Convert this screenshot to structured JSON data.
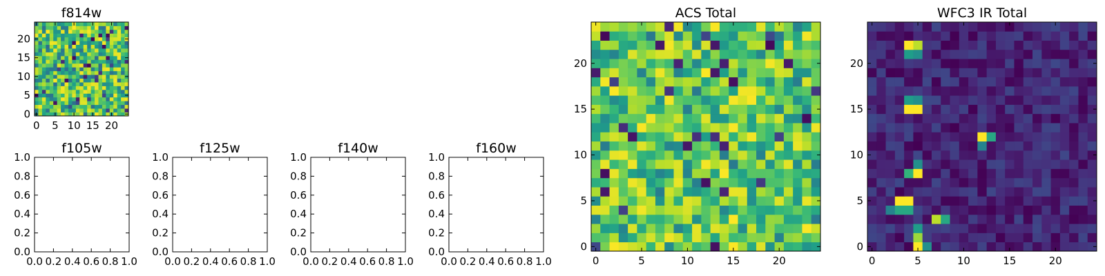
{
  "chart_data": [
    {
      "id": "f814w",
      "type": "heatmap",
      "title": "f814w",
      "grid_size": 25,
      "extent": [
        -0.5,
        24.5,
        -0.5,
        24.5
      ],
      "xticks": [
        0,
        5,
        10,
        15,
        20
      ],
      "yticks": [
        0,
        5,
        10,
        15,
        20
      ],
      "colormap": "viridis",
      "pattern": "noise",
      "seed": 814,
      "value_range": [
        0.35,
        1.0
      ]
    },
    {
      "id": "f105w",
      "type": "scatter",
      "title": "f105w",
      "empty": true,
      "xlim": [
        0,
        1
      ],
      "ylim": [
        0,
        1
      ],
      "xticks": [
        "0.0",
        "0.2",
        "0.4",
        "0.6",
        "0.8",
        "1.0"
      ],
      "yticks": [
        "0.0",
        "0.2",
        "0.4",
        "0.6",
        "0.8",
        "1.0"
      ]
    },
    {
      "id": "f125w",
      "type": "scatter",
      "title": "f125w",
      "empty": true,
      "xlim": [
        0,
        1
      ],
      "ylim": [
        0,
        1
      ],
      "xticks": [
        "0.0",
        "0.2",
        "0.4",
        "0.6",
        "0.8",
        "1.0"
      ],
      "yticks": [
        "0.0",
        "0.2",
        "0.4",
        "0.6",
        "0.8",
        "1.0"
      ]
    },
    {
      "id": "f140w",
      "type": "scatter",
      "title": "f140w",
      "empty": true,
      "xlim": [
        0,
        1
      ],
      "ylim": [
        0,
        1
      ],
      "xticks": [
        "0.0",
        "0.2",
        "0.4",
        "0.6",
        "0.8",
        "1.0"
      ],
      "yticks": [
        "0.0",
        "0.2",
        "0.4",
        "0.6",
        "0.8",
        "1.0"
      ]
    },
    {
      "id": "f160w",
      "type": "scatter",
      "title": "f160w",
      "empty": true,
      "xlim": [
        0,
        1
      ],
      "ylim": [
        0,
        1
      ],
      "xticks": [
        "0.0",
        "0.2",
        "0.4",
        "0.6",
        "0.8",
        "1.0"
      ],
      "yticks": [
        "0.0",
        "0.2",
        "0.4",
        "0.6",
        "0.8",
        "1.0"
      ]
    },
    {
      "id": "acs-total",
      "type": "heatmap",
      "title": "ACS Total",
      "grid_size": 25,
      "extent": [
        -0.5,
        24.5,
        -0.5,
        24.5
      ],
      "xticks": [
        0,
        5,
        10,
        15,
        20
      ],
      "yticks": [
        0,
        5,
        10,
        15,
        20
      ],
      "colormap": "viridis",
      "pattern": "noise",
      "seed": 2024,
      "value_range": [
        0.4,
        1.0
      ]
    },
    {
      "id": "wfc3-ir-total",
      "type": "heatmap",
      "title": "WFC3 IR Total",
      "grid_size": 25,
      "extent": [
        -0.5,
        24.5,
        -0.5,
        24.5
      ],
      "xticks": [
        0,
        5,
        10,
        15,
        20
      ],
      "yticks": [
        0,
        5,
        10,
        15,
        20
      ],
      "colormap": "viridis",
      "pattern": "sparse",
      "seed": 160,
      "value_range": [
        0.0,
        0.22
      ],
      "bright_cells": [
        {
          "x": 4,
          "y": 22,
          "v": 1.0
        },
        {
          "x": 5,
          "y": 22,
          "v": 0.9
        },
        {
          "x": 4,
          "y": 21,
          "v": 0.55
        },
        {
          "x": 5,
          "y": 21,
          "v": 0.5
        },
        {
          "x": 4,
          "y": 16,
          "v": 0.55
        },
        {
          "x": 5,
          "y": 16,
          "v": 0.5
        },
        {
          "x": 4,
          "y": 15,
          "v": 1.0
        },
        {
          "x": 5,
          "y": 15,
          "v": 1.0
        },
        {
          "x": 12,
          "y": 12,
          "v": 1.0
        },
        {
          "x": 13,
          "y": 12,
          "v": 0.6
        },
        {
          "x": 12,
          "y": 11,
          "v": 0.45
        },
        {
          "x": 5,
          "y": 9,
          "v": 0.5
        },
        {
          "x": 4,
          "y": 8,
          "v": 0.65
        },
        {
          "x": 5,
          "y": 8,
          "v": 1.0
        },
        {
          "x": 3,
          "y": 5,
          "v": 1.0
        },
        {
          "x": 4,
          "y": 5,
          "v": 1.0
        },
        {
          "x": 2,
          "y": 4,
          "v": 0.45
        },
        {
          "x": 3,
          "y": 4,
          "v": 0.6
        },
        {
          "x": 4,
          "y": 4,
          "v": 0.6
        },
        {
          "x": 7,
          "y": 3,
          "v": 0.9
        },
        {
          "x": 8,
          "y": 3,
          "v": 0.6
        },
        {
          "x": 5,
          "y": 2,
          "v": 0.55
        },
        {
          "x": 5,
          "y": 1,
          "v": 0.85
        },
        {
          "x": 5,
          "y": 0,
          "v": 1.0
        },
        {
          "x": 6,
          "y": 0,
          "v": 0.5
        }
      ]
    }
  ]
}
